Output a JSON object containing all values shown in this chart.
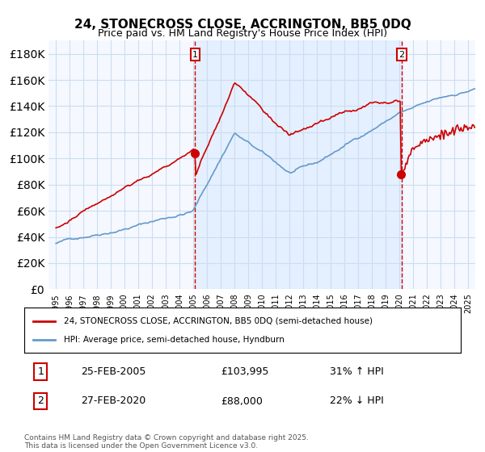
{
  "title": "24, STONECROSS CLOSE, ACCRINGTON, BB5 0DQ",
  "subtitle": "Price paid vs. HM Land Registry's House Price Index (HPI)",
  "legend_line1": "24, STONECROSS CLOSE, ACCRINGTON, BB5 0DQ (semi-detached house)",
  "legend_line2": "HPI: Average price, semi-detached house, Hyndburn",
  "marker1_date": "25-FEB-2005",
  "marker1_price": 103995,
  "marker1_pct": "31% ↑ HPI",
  "marker2_date": "27-FEB-2020",
  "marker2_price": 88000,
  "marker2_pct": "22% ↓ HPI",
  "footer": "Contains HM Land Registry data © Crown copyright and database right 2025.\nThis data is licensed under the Open Government Licence v3.0.",
  "red_color": "#cc0000",
  "blue_color": "#6699cc",
  "shade_color": "#ddeeff",
  "grid_color": "#ccddee",
  "bg_color": "#f5f8ff",
  "vline_color": "#cc0000",
  "marker1_x_year": 2005.15,
  "marker2_x_year": 2020.15,
  "ylim_min": 0,
  "ylim_max": 190000,
  "xlim_min": 1994.5,
  "xlim_max": 2025.5
}
